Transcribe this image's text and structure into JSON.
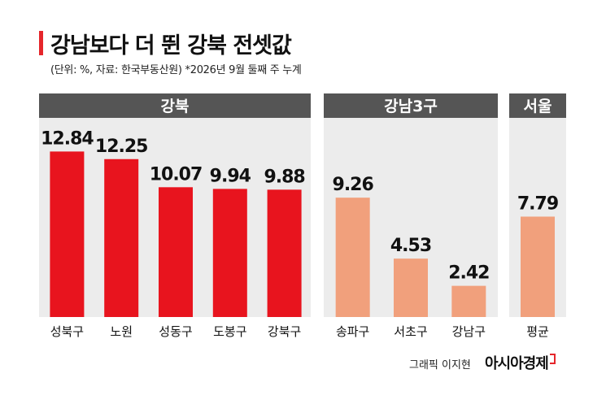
{
  "title": "강남보다 더 뛴 강북 전셋값",
  "subtitle": "(단위: %, 자료: 한국부동산원)  *2026년 9월 둘째 주 누계",
  "credit": "그래픽 이지현",
  "brand": "아시아경제",
  "colors": {
    "gangbuk": "#e8141e",
    "other": "#f1a07c",
    "header": "#555555",
    "panel": "#ececec"
  },
  "chart_data": {
    "type": "bar",
    "groups": [
      {
        "name": "강북",
        "color": "#e8141e",
        "categories": [
          "성북구",
          "노원",
          "성동구",
          "도봉구",
          "강북구"
        ],
        "values": [
          12.84,
          12.25,
          10.07,
          9.94,
          9.88
        ]
      },
      {
        "name": "강남3구",
        "color": "#f1a07c",
        "categories": [
          "송파구",
          "서초구",
          "강남구"
        ],
        "values": [
          9.26,
          4.53,
          2.42
        ]
      },
      {
        "name": "서울",
        "color": "#f1a07c",
        "categories": [
          "평균"
        ],
        "values": [
          7.79
        ]
      }
    ],
    "value_labels": [
      "12.84",
      "12.25",
      "10.07",
      "9.94",
      "9.88",
      "9.26",
      "4.53",
      "2.42",
      "7.79"
    ],
    "ylim": [
      0,
      14
    ]
  }
}
